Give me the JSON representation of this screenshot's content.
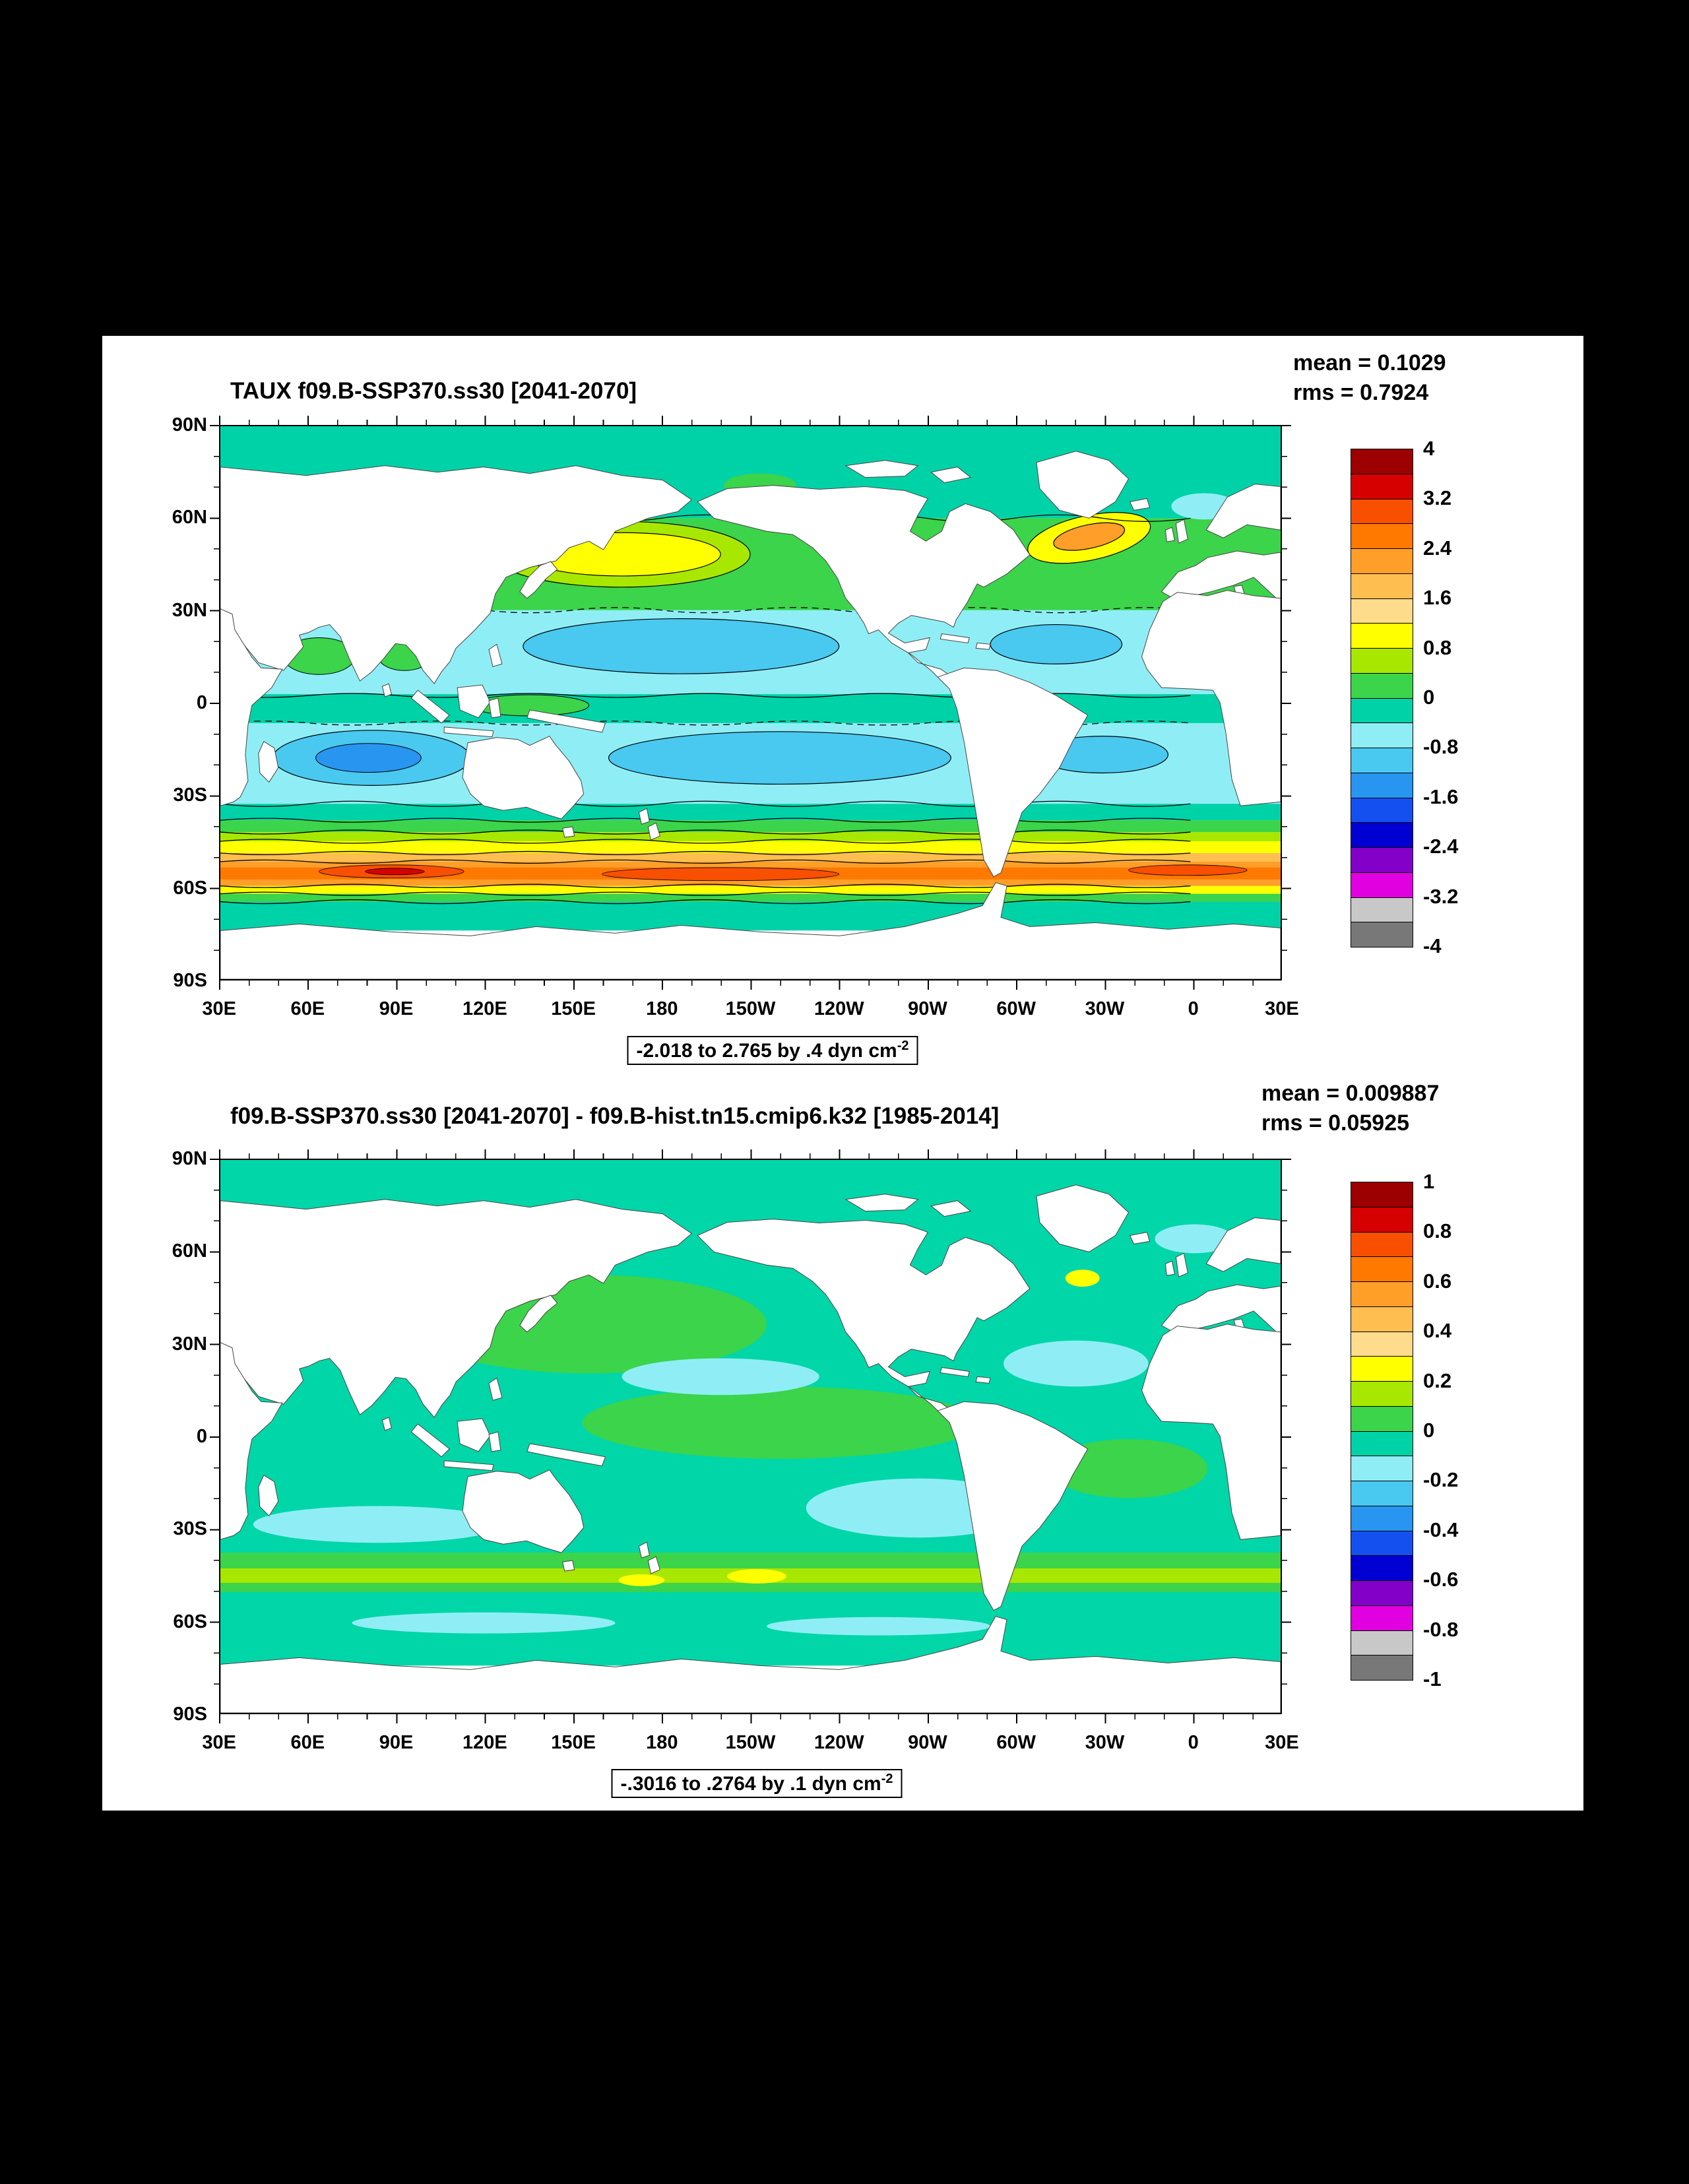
{
  "page": {
    "bg": "#000000",
    "sheet_bg": "#ffffff"
  },
  "palette": [
    "#9c0000",
    "#d60000",
    "#f85000",
    "#ff7800",
    "#ff9e28",
    "#ffbe50",
    "#ffdc8c",
    "#ffff00",
    "#a8e800",
    "#3bd44a",
    "#00d2a8",
    "#8feef5",
    "#49c8f0",
    "#2896f0",
    "#1450f0",
    "#0000d2",
    "#8200c8",
    "#e000e0",
    "#c8c8c8",
    "#787878"
  ],
  "panels": [
    {
      "title": "TAUX f09.B-SSP370.ss30 [2041-2070]",
      "stats": {
        "mean": "mean = 0.1029",
        "rms": "rms = 0.7924"
      },
      "caption": "-2.018 to 2.765 by .4 dyn cm",
      "caption_sup": "-2",
      "lat_ticks": [
        "90N",
        "60N",
        "30N",
        "0",
        "30S",
        "60S",
        "90S"
      ],
      "lon_ticks": [
        "30E",
        "60E",
        "90E",
        "120E",
        "150E",
        "180",
        "150W",
        "120W",
        "90W",
        "60W",
        "30W",
        "0",
        "30E"
      ],
      "cbar_labels": [
        "4",
        "3.2",
        "2.4",
        "1.6",
        "0.8",
        "0",
        "-0.8",
        "-1.6",
        "-2.4",
        "-3.2",
        "-4"
      ]
    },
    {
      "title": "f09.B-SSP370.ss30 [2041-2070] - f09.B-hist.tn15.cmip6.k32 [1985-2014]",
      "stats": {
        "mean": "mean = 0.009887",
        "rms": "rms = 0.05925"
      },
      "caption": "-.3016 to .2764 by .1 dyn cm",
      "caption_sup": "-2",
      "lat_ticks": [
        "90N",
        "60N",
        "30N",
        "0",
        "30S",
        "60S",
        "90S"
      ],
      "lon_ticks": [
        "30E",
        "60E",
        "90E",
        "120E",
        "150E",
        "180",
        "150W",
        "120W",
        "90W",
        "60W",
        "30W",
        "0",
        "30E"
      ],
      "cbar_labels": [
        "1",
        "0.8",
        "0.6",
        "0.4",
        "0.2",
        "0",
        "-0.2",
        "-0.4",
        "-0.6",
        "-0.8",
        "-1"
      ]
    }
  ],
  "chart_data": [
    {
      "type": "heatmap",
      "render": "filled_contour_world_map",
      "title": "TAUX f09.B-SSP370.ss30 [2041-2070]",
      "variable": "TAUX (zonal surface wind stress)",
      "units": "dyn cm^-2",
      "projection": "cylindrical equidistant, longitudes 30E eastward around to 30E, latitudes 90S to 90N",
      "mean": 0.1029,
      "rms": 0.7924,
      "field_min": -2.018,
      "field_max": 2.765,
      "contour_interval": 0.4,
      "colorbar_levels": [
        4,
        3.2,
        2.4,
        1.6,
        0.8,
        0,
        -0.8,
        -1.6,
        -2.4,
        -3.2,
        -4
      ],
      "lon_ticks": [
        "30E",
        "60E",
        "90E",
        "120E",
        "150E",
        "180",
        "150W",
        "120W",
        "90W",
        "60W",
        "30W",
        "0",
        "30E"
      ],
      "lat_ticks": [
        "90N",
        "60N",
        "30N",
        "0",
        "30S",
        "60S",
        "90S"
      ],
      "legend_position": "right",
      "grid": false,
      "notable_features": [
        "Strong positive westerly band (0.8 to >2.4, local maxima near 2.4-2.8) circling the Southern Ocean between about 40S and 62S",
        "Positive mid-latitude maxima in the North Pacific near 40N (~0.8-1.2, yellow) and North Atlantic near 50-60N (~0.8-1.6, yellow/orange)",
        "Negative trade-wind bands (-0.4 to -1.6, cyan/blue) in the subtropics of both hemispheres, strongest in the south Indian Ocean near 15S",
        "Near-zero to weakly positive values (green/teal) along the equator and at high northern latitudes"
      ]
    },
    {
      "type": "heatmap",
      "render": "filled_contour_world_map",
      "title": "f09.B-SSP370.ss30 [2041-2070] - f09.B-hist.tn15.cmip6.k32 [1985-2014]",
      "variable": "TAUX difference (future minus historical)",
      "units": "dyn cm^-2",
      "projection": "cylindrical equidistant, longitudes 30E eastward around to 30E, latitudes 90S to 90N",
      "mean": 0.009887,
      "rms": 0.05925,
      "field_min": -0.3016,
      "field_max": 0.2764,
      "contour_interval": 0.1,
      "colorbar_levels": [
        1,
        0.8,
        0.6,
        0.4,
        0.2,
        0,
        -0.2,
        -0.4,
        -0.6,
        -0.8,
        -1
      ],
      "lon_ticks": [
        "30E",
        "60E",
        "90E",
        "120E",
        "150E",
        "180",
        "150W",
        "120W",
        "90W",
        "60W",
        "30W",
        "0",
        "30E"
      ],
      "lat_ticks": [
        "90N",
        "60N",
        "30N",
        "0",
        "30S",
        "60S",
        "90S"
      ],
      "legend_position": "right",
      "grid": false,
      "notable_features": [
        "Differences mostly within +/-0.1 (teal/green) over all oceans",
        "Small positive patches (0.1-0.3, yellow) along 55-60S near 160W-120W and in the North Atlantic near Greenland",
        "Weak negative patches (-0.1 to -0.2, pale cyan) in the subtropical south-east Pacific, south Indian Ocean and North Atlantic subtropics",
        "Weak positive (green) anomalies across the central North Pacific and equatorial central Pacific"
      ]
    }
  ]
}
